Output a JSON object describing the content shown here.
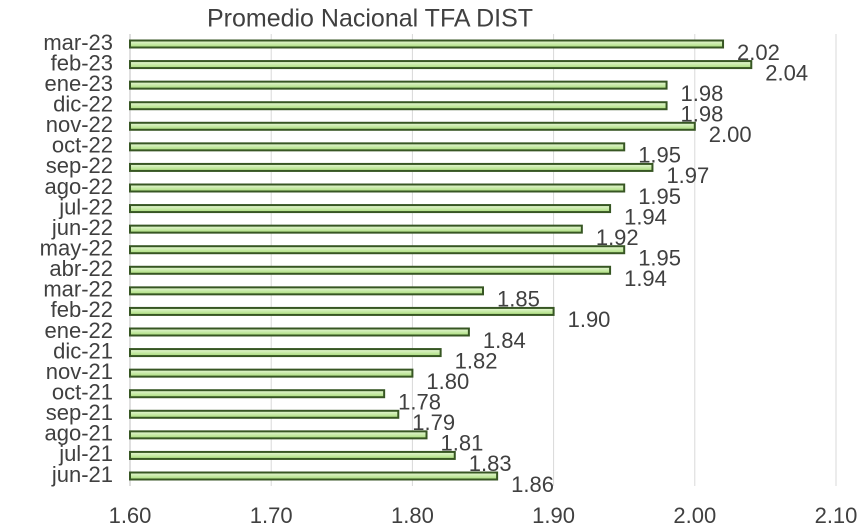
{
  "chart_data": {
    "type": "barh",
    "title": "Promedio Nacional TFA DIST",
    "categories": [
      "mar-23",
      "feb-23",
      "ene-23",
      "dic-22",
      "nov-22",
      "oct-22",
      "sep-22",
      "ago-22",
      "jul-22",
      "jun-22",
      "may-22",
      "abr-22",
      "mar-22",
      "feb-22",
      "ene-22",
      "dic-21",
      "nov-21",
      "oct-21",
      "sep-21",
      "ago-21",
      "jul-21",
      "jun-21"
    ],
    "values": [
      2.02,
      2.04,
      1.98,
      1.98,
      2.0,
      1.95,
      1.97,
      1.95,
      1.94,
      1.92,
      1.95,
      1.94,
      1.85,
      1.9,
      1.84,
      1.82,
      1.8,
      1.78,
      1.79,
      1.81,
      1.83,
      1.86
    ],
    "value_labels": [
      "2.02",
      "2.04",
      "1.98",
      "1.98",
      "2.00",
      "1.95",
      "1.97",
      "1.95",
      "1.94",
      "1.92",
      "1.95",
      "1.94",
      "1.85",
      "1.90",
      "1.84",
      "1.82",
      "1.80",
      "1.78",
      "1.79",
      "1.81",
      "1.83",
      "1.86"
    ],
    "color": "#c6efa0",
    "xlim": [
      1.6,
      2.1
    ],
    "xticks": [
      {
        "value": 1.6,
        "label": "1.60"
      },
      {
        "value": 1.7,
        "label": "1.70"
      },
      {
        "value": 1.8,
        "label": "1.80"
      },
      {
        "value": 1.9,
        "label": "1.90"
      },
      {
        "value": 2.0,
        "label": "2.00"
      },
      {
        "value": 2.1,
        "label": "2.10"
      }
    ],
    "grid": true
  }
}
